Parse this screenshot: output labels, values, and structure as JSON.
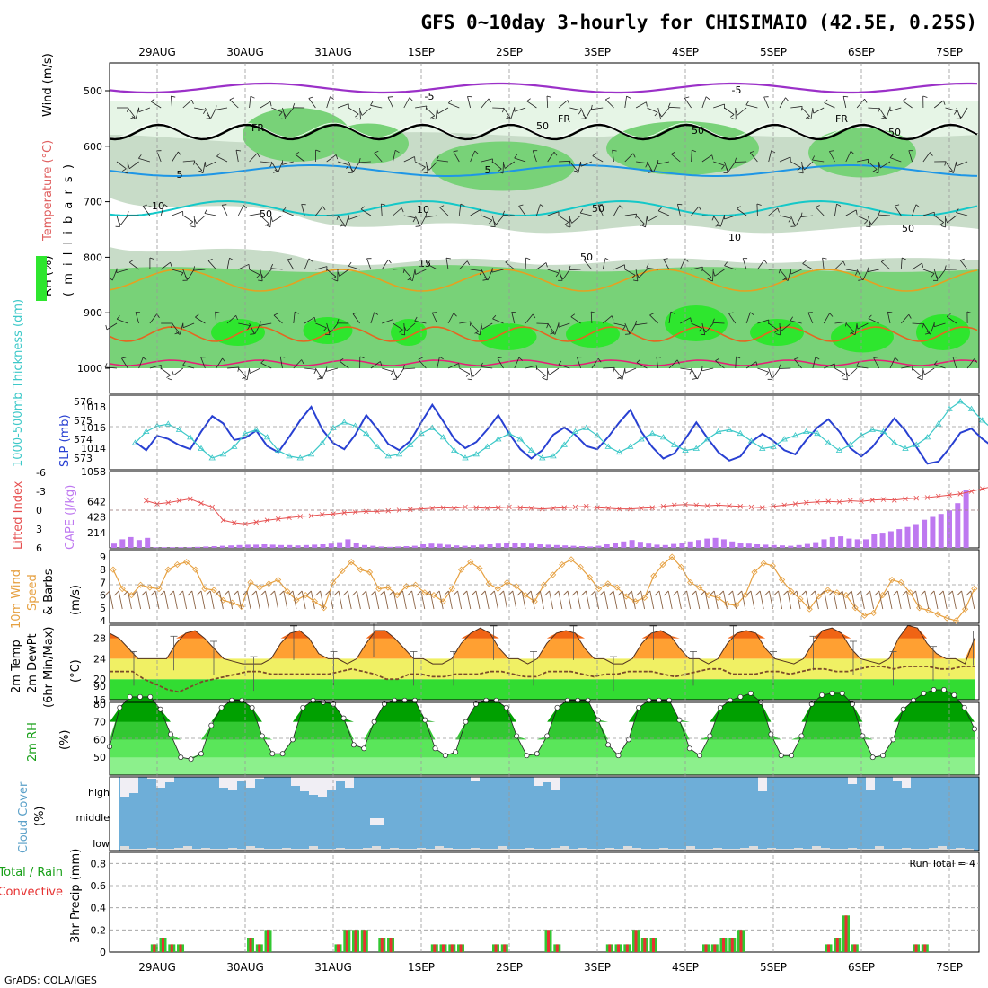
{
  "title": "GFS 0~10day 3-hourly for CHISIMAIO (42.5E, 0.25S)",
  "footer": "GrADS: COLA/IGES",
  "dates": [
    "29AUG",
    "30AUG",
    "31AUG",
    "1SEP",
    "2SEP",
    "3SEP",
    "4SEP",
    "5SEP",
    "6SEP",
    "7SEP"
  ],
  "panel_labels": {
    "upper": {
      "rh": "RH (%)",
      "temp": "Temperature (°C)",
      "wind": "Wind (m/s)",
      "mb": "( m i l l i b a r s )"
    },
    "slp": {
      "thick": "1000-500mb Thickness (dm)",
      "slp": "SLP (mb)"
    },
    "cape": {
      "li": "Lifted Index",
      "cape": "CAPE (J/kg)"
    },
    "wind10": {
      "a": "10m Wind",
      "b": "Speed",
      "c": "(m/s)",
      "d": "& Barbs"
    },
    "temp2m": {
      "a": "2m Temp",
      "b": "2m DewPt",
      "c": "(6hr Min/Max)",
      "d": "(°C)"
    },
    "rh2m": {
      "a": "2m RH",
      "b": "(%)"
    },
    "cloud": {
      "a": "Cloud Cover",
      "b": "(%)",
      "high": "high",
      "middle": "middle",
      "low": "low"
    },
    "precip": {
      "a": "Total / Rain",
      "b": "Convective",
      "c": "3hr Precip (mm)",
      "run_total": "Run Total = 4"
    }
  },
  "contour_labels": [
    "-5",
    "-5",
    "FR",
    "FR",
    "FR",
    "50",
    "50",
    "50",
    "50",
    "5",
    "5",
    "-10",
    "10",
    "10",
    "50",
    "50",
    "15",
    "50"
  ],
  "colors": {
    "rh_light": "#e6f5e6",
    "rh_mid": "#c8dcc8",
    "rh_dark": "#78d278",
    "rh_bright": "#2ee62e",
    "freeze": "#000000",
    "tm5": "#9b30c8",
    "t5": "#1e96e6",
    "t10": "#14c8c8",
    "t15": "#e6a020",
    "t20": "#e66420",
    "t25": "#e61e78",
    "slp": "#2840d2",
    "thick": "#3cc8c8",
    "li": "#e65050",
    "cape": "#be78f0",
    "wind": "#e6a040",
    "barb": "#8c6446",
    "tmax": "#f06414",
    "tmid": "#ffa032",
    "tyellow": "#f0f064",
    "tgreen": "#32dc32",
    "dew": "#7a4a2a",
    "rh1": "#00a000",
    "rh2": "#32c832",
    "rh3": "#5ae65a",
    "rh4": "#8cf08c",
    "cloud_blue": "#6eaed8",
    "cloud_white": "#f0eef4",
    "rain": "#32c832",
    "conv": "#e63232"
  },
  "chart_data": [
    {
      "panel": "upper_air",
      "type": "heatmap",
      "ylabel": "mb",
      "y_ticks": [
        500,
        600,
        700,
        800,
        900,
        1000
      ],
      "legend": [
        "RH (%)",
        "Temperature (°C)",
        "Wind (m/s)"
      ]
    },
    {
      "panel": "slp_thickness",
      "type": "line",
      "left_ticks": [
        576,
        575,
        574,
        573
      ],
      "right_ticks": [
        1018,
        1016,
        1014
      ],
      "series": [
        {
          "name": "SLP",
          "units": "mb",
          "values": [
            1014.6,
            1013.8,
            1015.2,
            1014.9,
            1014.3,
            1013.9,
            1015.6,
            1017.1,
            1016.4,
            1014.8,
            1015.0,
            1015.7,
            1014.2,
            1013.6,
            1015.1,
            1016.7,
            1018.0,
            1015.8,
            1014.5,
            1013.9,
            1015.3,
            1017.2,
            1015.9,
            1014.4,
            1013.8,
            1014.7,
            1016.5,
            1018.2,
            1016.6,
            1014.9,
            1014.0,
            1014.6,
            1015.8,
            1017.2,
            1015.4,
            1013.9,
            1013.0,
            1013.8,
            1015.3,
            1016.0,
            1015.3,
            1014.2,
            1013.9,
            1015.1,
            1016.5,
            1017.7,
            1015.6,
            1014.1,
            1013.0,
            1013.5,
            1014.9,
            1016.5,
            1015.0,
            1013.6,
            1012.8,
            1013.2,
            1014.6,
            1015.4,
            1014.7,
            1013.8,
            1013.4,
            1014.8,
            1016.0,
            1016.8,
            1015.6,
            1014.0,
            1013.2,
            1014.1,
            1015.5,
            1016.9,
            1015.7,
            1014.1,
            1012.5,
            1012.7,
            1014.0,
            1015.5,
            1015.9,
            1014.9,
            1014.1,
            1014.8,
            1015.4,
            1014.3,
            1012.9,
            1013.0,
            1014.2,
            1015.4,
            1016.0,
            1014.5,
            1013.6,
            1014.7,
            1015.6
          ]
        },
        {
          "name": "Thickness",
          "units": "dm",
          "values": [
            573.8,
            574.4,
            574.7,
            574.8,
            574.5,
            574.1,
            573.5,
            573.0,
            573.2,
            573.6,
            574.3,
            574.5,
            574.1,
            573.4,
            573.1,
            573.0,
            573.2,
            573.8,
            574.6,
            574.9,
            574.7,
            574.3,
            573.6,
            573.1,
            573.2,
            573.7,
            574.3,
            574.6,
            574.1,
            573.4,
            573.0,
            573.2,
            573.6,
            574.0,
            574.3,
            574.0,
            573.4,
            573.0,
            573.1,
            573.7,
            574.4,
            574.6,
            574.2,
            573.6,
            573.3,
            573.6,
            574.0,
            574.3,
            574.1,
            573.7,
            573.4,
            573.5,
            574.0,
            574.4,
            574.5,
            574.3,
            573.9,
            573.5,
            573.6,
            574.0,
            574.2,
            574.4,
            574.3,
            573.8,
            573.4,
            573.7,
            574.2,
            574.5,
            574.4,
            573.8,
            573.5,
            573.7,
            574.1,
            574.8,
            575.6,
            576.0,
            575.6,
            575.0,
            574.5,
            574.2,
            574.1,
            574.3,
            573.8,
            573.4,
            573.6,
            574.3,
            575.1,
            575.3,
            574.9,
            574.4,
            574.6
          ]
        }
      ]
    },
    {
      "panel": "cape_li",
      "type": "bar",
      "left_ticks": [
        -6,
        -3,
        0,
        3,
        6
      ],
      "right_ticks": [
        1058,
        642,
        428,
        214
      ],
      "series": [
        {
          "name": "CAPE",
          "units": "J/kg",
          "values": [
            60,
            120,
            150,
            110,
            140,
            10,
            10,
            10,
            10,
            10,
            15,
            20,
            25,
            30,
            35,
            40,
            45,
            45,
            50,
            45,
            40,
            40,
            35,
            40,
            45,
            50,
            60,
            80,
            120,
            70,
            40,
            30,
            20,
            15,
            20,
            25,
            30,
            50,
            60,
            55,
            45,
            35,
            30,
            35,
            45,
            50,
            60,
            70,
            75,
            65,
            60,
            50,
            45,
            40,
            35,
            30,
            25,
            20,
            30,
            50,
            70,
            90,
            110,
            85,
            60,
            45,
            40,
            55,
            70,
            90,
            110,
            130,
            140,
            120,
            90,
            70,
            60,
            50,
            45,
            40,
            35,
            30,
            40,
            55,
            80,
            120,
            150,
            160,
            130,
            120,
            120,
            190,
            210,
            230,
            260,
            290,
            330,
            390,
            430,
            470,
            520,
            620,
            800
          ]
        },
        {
          "name": "Lifted Index",
          "units": "",
          "values": [
            -1.5,
            -1.0,
            -1.2,
            -1.5,
            -1.8,
            -1.1,
            -0.5,
            1.6,
            2.0,
            2.2,
            1.9,
            1.6,
            1.4,
            1.2,
            1.0,
            0.9,
            0.7,
            0.6,
            0.4,
            0.3,
            0.2,
            0.2,
            0.1,
            0.0,
            -0.1,
            -0.2,
            -0.3,
            -0.4,
            -0.3,
            -0.5,
            -0.4,
            -0.3,
            -0.4,
            -0.5,
            -0.4,
            -0.3,
            -0.2,
            -0.3,
            -0.4,
            -0.5,
            -0.6,
            -0.4,
            -0.3,
            -0.2,
            -0.2,
            -0.3,
            -0.4,
            -0.6,
            -0.8,
            -0.9,
            -0.8,
            -0.7,
            -0.8,
            -0.7,
            -0.6,
            -0.5,
            -0.4,
            -0.6,
            -0.8,
            -1.0,
            -1.2,
            -1.3,
            -1.4,
            -1.3,
            -1.5,
            -1.4,
            -1.6,
            -1.7,
            -1.6,
            -1.8,
            -1.9,
            -2.0,
            -2.2,
            -2.4,
            -2.6,
            -3.0,
            -3.4,
            -3.8,
            -4.2,
            -4.6,
            -5.2
          ]
        }
      ]
    },
    {
      "panel": "wind10m",
      "type": "line",
      "y_ticks": [
        9,
        8,
        7,
        6,
        5,
        4
      ],
      "ylim": [
        4,
        9
      ],
      "series": [
        {
          "name": "10m Wind Speed",
          "units": "m/s",
          "values": [
            8.0,
            6.5,
            6.0,
            6.8,
            6.6,
            6.5,
            8.0,
            8.4,
            8.6,
            8.0,
            6.5,
            6.4,
            5.6,
            5.4,
            5.1,
            7.0,
            6.6,
            6.9,
            7.2,
            6.3,
            5.6,
            6.0,
            5.5,
            5.0,
            7.0,
            7.9,
            8.6,
            8.0,
            7.8,
            6.5,
            6.6,
            6.0,
            6.7,
            6.8,
            6.2,
            6.0,
            5.5,
            6.5,
            8.0,
            8.6,
            8.1,
            6.9,
            6.5,
            7.0,
            6.7,
            6.0,
            5.5,
            6.8,
            7.6,
            8.4,
            8.8,
            8.2,
            7.4,
            6.5,
            6.9,
            6.6,
            5.9,
            5.5,
            5.8,
            7.5,
            8.4,
            9.0,
            8.2,
            7.0,
            6.6,
            6.0,
            5.8,
            5.3,
            5.2,
            6.0,
            7.8,
            8.5,
            8.3,
            7.2,
            6.3,
            5.7,
            4.9,
            5.9,
            6.4,
            6.2,
            6.0,
            5.0,
            4.4,
            4.6,
            6.0,
            7.2,
            7.0,
            6.2,
            5.0,
            4.8,
            4.5,
            4.2,
            4.0,
            4.9,
            6.5
          ]
        }
      ]
    },
    {
      "panel": "temp2m",
      "type": "area",
      "y_ticks": [
        28,
        24,
        20,
        16
      ],
      "ylim": [
        16,
        30
      ],
      "series": [
        {
          "name": "2m Temp",
          "units": "°C",
          "values": [
            29,
            28,
            26,
            24,
            24,
            24,
            24,
            27,
            29,
            29.5,
            28,
            26,
            24,
            23.5,
            23,
            23,
            23,
            24,
            27,
            29,
            29.5,
            28,
            25,
            24,
            24,
            23,
            24,
            27,
            29.5,
            29.5,
            28,
            26,
            24,
            24,
            23,
            23,
            24,
            27,
            29,
            30,
            29,
            26,
            24,
            24,
            23,
            24,
            27,
            29,
            29.5,
            29,
            26,
            24,
            24,
            23,
            23,
            24,
            27,
            29,
            29.5,
            28.5,
            26,
            24,
            24,
            23,
            24,
            27,
            29,
            29.5,
            29,
            26,
            24,
            23.5,
            23,
            24,
            27,
            29.5,
            30,
            29,
            26,
            24,
            23.5,
            23,
            24,
            28,
            30.5,
            30,
            27,
            25,
            24,
            24,
            23,
            28
          ]
        },
        {
          "name": "2m DewPt",
          "units": "°C",
          "values": [
            21.5,
            21.5,
            21.5,
            20,
            19,
            18,
            17.5,
            18.5,
            19.5,
            20,
            20.5,
            21,
            21.5,
            21.5,
            21,
            21,
            21,
            21,
            21,
            21,
            21.5,
            22,
            21.5,
            21,
            20,
            20,
            21,
            21,
            20.5,
            20.5,
            21,
            21,
            21,
            21.5,
            21.5,
            21,
            20.5,
            20.5,
            21.5,
            21.5,
            21.5,
            21,
            20.5,
            21,
            21,
            21.5,
            21.5,
            21.5,
            21,
            20.5,
            21,
            21.5,
            22,
            22,
            21,
            21,
            21,
            21.5,
            21.5,
            21,
            21.5,
            22,
            22,
            21.5,
            21.5,
            22,
            22.5,
            22.5,
            22,
            22.5,
            22.5,
            22.5,
            22,
            22,
            22.5,
            22.5
          ]
        }
      ]
    },
    {
      "panel": "rh2m",
      "type": "area",
      "y_ticks": [
        90,
        80,
        70,
        60,
        50
      ],
      "ylim": [
        40,
        90
      ],
      "series": [
        {
          "name": "2m RH",
          "units": "%",
          "values": [
            56,
            78,
            84,
            84,
            84,
            77,
            63,
            50,
            49,
            52,
            68,
            78,
            82,
            82,
            78,
            62,
            52,
            52,
            60,
            78,
            82,
            81,
            80,
            72,
            57,
            55,
            70,
            80,
            82,
            82,
            82,
            71,
            55,
            51,
            53,
            70,
            80,
            82,
            82,
            78,
            62,
            51,
            52,
            62,
            78,
            82,
            82,
            82,
            71,
            57,
            51,
            60,
            78,
            82,
            82,
            82,
            71,
            55,
            51,
            62,
            78,
            82,
            84,
            86,
            81,
            63,
            51,
            51,
            62,
            80,
            85,
            86,
            86,
            80,
            62,
            50,
            51,
            60,
            77,
            82,
            86,
            88,
            88,
            85,
            78,
            66
          ]
        }
      ]
    },
    {
      "panel": "cloud_cover",
      "type": "bar",
      "rows": [
        "high",
        "middle",
        "low"
      ]
    },
    {
      "panel": "precip",
      "type": "bar",
      "y_ticks": [
        0.8,
        0.6,
        0.4,
        0.2,
        0
      ],
      "ylim": [
        0,
        0.9
      ],
      "series": [
        {
          "name": "3hr Precip",
          "units": "mm",
          "values": [
            0,
            0.07,
            0.13,
            0.07,
            0.07,
            0,
            0,
            0,
            0,
            0,
            0,
            0,
            0.13,
            0.07,
            0.2,
            0,
            0,
            0,
            0,
            0,
            0,
            0,
            0.07,
            0.2,
            0.2,
            0.2,
            0,
            0.13,
            0.13,
            0,
            0,
            0,
            0,
            0.07,
            0.07,
            0.07,
            0.07,
            0,
            0,
            0,
            0.07,
            0.07,
            0,
            0,
            0,
            0,
            0.2,
            0.07,
            0,
            0,
            0,
            0,
            0,
            0.07,
            0.07,
            0.07,
            0.2,
            0.13,
            0.13,
            0,
            0,
            0,
            0,
            0,
            0.07,
            0.07,
            0.13,
            0.13,
            0.2,
            0,
            0,
            0,
            0,
            0,
            0,
            0,
            0,
            0,
            0.07,
            0.13,
            0.33,
            0.07,
            0,
            0,
            0,
            0,
            0,
            0,
            0.07,
            0.07,
            0,
            0,
            0,
            0,
            0,
            0,
            0,
            0,
            0,
            0.07,
            0,
            0.07
          ]
        }
      ]
    }
  ]
}
